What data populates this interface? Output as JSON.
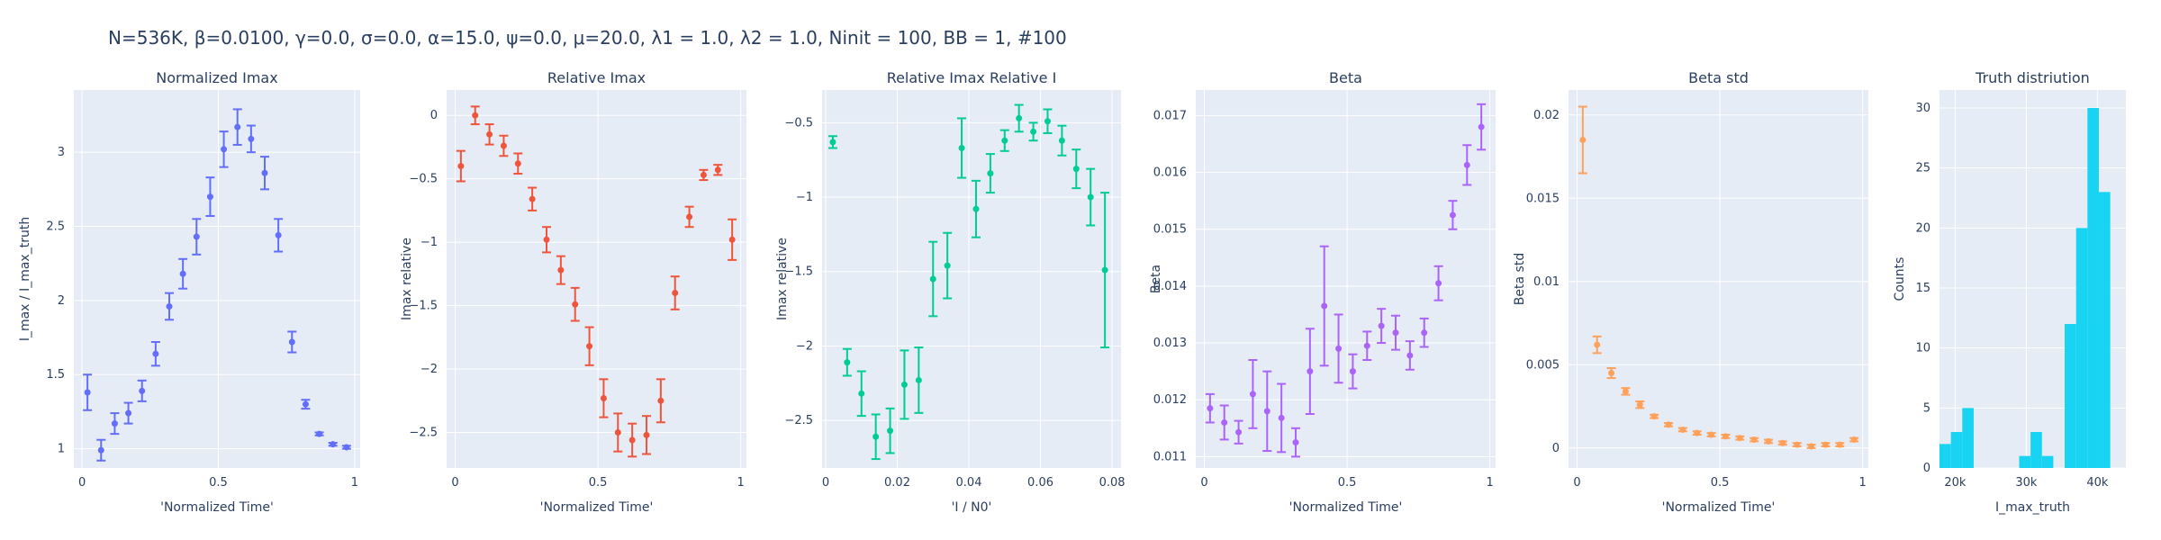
{
  "title": "N=536K, β=0.0100, γ=0.0, σ=0.0,  α=15.0, ψ=0.0, μ=20.0, λ1 = 1.0, λ2 = 1.0, Ninit = 100, BB = 1, #100",
  "colors": {
    "plot_bg": "#e5ecf6",
    "grid": "#ffffff",
    "text": "#2a3f5f"
  },
  "chart_data": [
    {
      "type": "scatter",
      "title": "Normalized Imax",
      "xlabel": "'Normalized Time'",
      "ylabel": "I_max / I_max_truth",
      "color": "#636efa",
      "xlim": [
        -0.03,
        1.02
      ],
      "ylim": [
        0.87,
        3.42
      ],
      "xticks": [
        0,
        0.5,
        1
      ],
      "xtick_labels": [
        "0",
        "0.5",
        "1"
      ],
      "yticks": [
        1,
        1.5,
        2,
        2.5,
        3
      ],
      "ytick_labels": [
        "1",
        "1.5",
        "2",
        "2.5",
        "3"
      ],
      "x": [
        0.02,
        0.07,
        0.12,
        0.17,
        0.22,
        0.27,
        0.32,
        0.37,
        0.42,
        0.47,
        0.52,
        0.57,
        0.62,
        0.67,
        0.72,
        0.77,
        0.82,
        0.87,
        0.92,
        0.97
      ],
      "y": [
        1.38,
        0.99,
        1.17,
        1.24,
        1.39,
        1.64,
        1.96,
        2.18,
        2.43,
        2.7,
        3.02,
        3.17,
        3.09,
        2.86,
        2.44,
        1.72,
        1.3,
        1.1,
        1.03,
        1.01
      ],
      "err": [
        0.12,
        0.07,
        0.07,
        0.07,
        0.07,
        0.08,
        0.09,
        0.1,
        0.12,
        0.13,
        0.12,
        0.12,
        0.09,
        0.11,
        0.11,
        0.07,
        0.03,
        0.01,
        0.01,
        0.01
      ]
    },
    {
      "type": "scatter",
      "title": "Relative Imax",
      "xlabel": "'Normalized Time'",
      "ylabel": "Imax relative",
      "color": "#ef553b",
      "xlim": [
        -0.03,
        1.02
      ],
      "ylim": [
        -2.78,
        0.2
      ],
      "xticks": [
        0,
        0.5,
        1
      ],
      "xtick_labels": [
        "0",
        "0.5",
        "1"
      ],
      "yticks": [
        0,
        -0.5,
        -1,
        -1.5,
        -2,
        -2.5
      ],
      "ytick_labels": [
        "0",
        "−0.5",
        "−1",
        "−1.5",
        "−2",
        "−2.5"
      ],
      "x": [
        0.02,
        0.07,
        0.12,
        0.17,
        0.22,
        0.27,
        0.32,
        0.37,
        0.42,
        0.47,
        0.52,
        0.57,
        0.62,
        0.67,
        0.72,
        0.77,
        0.82,
        0.87,
        0.92,
        0.97
      ],
      "y": [
        -0.4,
        0.0,
        -0.15,
        -0.24,
        -0.38,
        -0.66,
        -0.98,
        -1.22,
        -1.49,
        -1.82,
        -2.23,
        -2.5,
        -2.56,
        -2.52,
        -2.25,
        -1.4,
        -0.8,
        -0.47,
        -0.43,
        -0.98
      ],
      "err": [
        0.12,
        0.07,
        0.08,
        0.08,
        0.08,
        0.09,
        0.1,
        0.11,
        0.13,
        0.15,
        0.15,
        0.15,
        0.13,
        0.15,
        0.17,
        0.13,
        0.08,
        0.04,
        0.04,
        0.16
      ]
    },
    {
      "type": "scatter",
      "title": "Relative Imax Relative I",
      "xlabel": "'I / N0'",
      "ylabel": "Imax relative",
      "color": "#00cc96",
      "xlim": [
        -0.001,
        0.0825
      ],
      "ylim": [
        -2.82,
        -0.28
      ],
      "xticks": [
        0,
        0.02,
        0.04,
        0.06,
        0.08
      ],
      "xtick_labels": [
        "0",
        "0.02",
        "0.04",
        "0.06",
        "0.08"
      ],
      "yticks": [
        -0.5,
        -1,
        -1.5,
        -2,
        -2.5
      ],
      "ytick_labels": [
        "−0.5",
        "−1",
        "−1.5",
        "−2",
        "−2.5"
      ],
      "x": [
        0.002,
        0.006,
        0.01,
        0.014,
        0.018,
        0.022,
        0.026,
        0.03,
        0.034,
        0.038,
        0.042,
        0.046,
        0.05,
        0.054,
        0.058,
        0.062,
        0.066,
        0.07,
        0.074,
        0.078
      ],
      "y": [
        -0.63,
        -2.11,
        -2.32,
        -2.61,
        -2.57,
        -2.26,
        -2.23,
        -1.55,
        -1.46,
        -0.67,
        -1.08,
        -0.84,
        -0.62,
        -0.47,
        -0.56,
        -0.49,
        -0.62,
        -0.81,
        -1.0,
        -1.49
      ],
      "err": [
        0.04,
        0.09,
        0.15,
        0.15,
        0.15,
        0.23,
        0.22,
        0.25,
        0.22,
        0.2,
        0.19,
        0.13,
        0.07,
        0.09,
        0.06,
        0.08,
        0.1,
        0.13,
        0.19,
        0.52
      ]
    },
    {
      "type": "scatter",
      "title": "Beta",
      "xlabel": "'Normalized Time'",
      "ylabel": "Beta",
      "color": "#ab63fa",
      "xlim": [
        -0.03,
        1.02
      ],
      "ylim": [
        0.0108,
        0.01745
      ],
      "xticks": [
        0,
        0.5,
        1
      ],
      "xtick_labels": [
        "0",
        "0.5",
        "1"
      ],
      "yticks": [
        0.011,
        0.012,
        0.013,
        0.014,
        0.015,
        0.016,
        0.017
      ],
      "ytick_labels": [
        "0.011",
        "0.012",
        "0.013",
        "0.014",
        "0.015",
        "0.016",
        "0.017"
      ],
      "x": [
        0.02,
        0.07,
        0.12,
        0.17,
        0.22,
        0.27,
        0.32,
        0.37,
        0.42,
        0.47,
        0.52,
        0.57,
        0.62,
        0.67,
        0.72,
        0.77,
        0.82,
        0.87,
        0.92,
        0.97
      ],
      "y": [
        0.01185,
        0.0116,
        0.01143,
        0.0121,
        0.0118,
        0.01168,
        0.01125,
        0.0125,
        0.01365,
        0.0129,
        0.0125,
        0.01295,
        0.0133,
        0.01318,
        0.01278,
        0.01318,
        0.01405,
        0.01525,
        0.01613,
        0.0168
      ],
      "err": [
        0.00025,
        0.0003,
        0.0002,
        0.0006,
        0.0007,
        0.0006,
        0.00025,
        0.00075,
        0.00105,
        0.0006,
        0.0003,
        0.00025,
        0.0003,
        0.0003,
        0.00025,
        0.00025,
        0.0003,
        0.00025,
        0.00035,
        0.0004
      ]
    },
    {
      "type": "scatter",
      "title": "Beta std",
      "xlabel": "'Normalized Time'",
      "ylabel": "Beta std",
      "color": "#ffa15a",
      "xlim": [
        -0.03,
        1.02
      ],
      "ylim": [
        -0.0012,
        0.0215
      ],
      "xticks": [
        0,
        0.5,
        1
      ],
      "xtick_labels": [
        "0",
        "0.5",
        "1"
      ],
      "yticks": [
        0,
        0.005,
        0.01,
        0.015,
        0.02
      ],
      "ytick_labels": [
        "0",
        "0.005",
        "0.01",
        "0.015",
        "0.02"
      ],
      "x": [
        0.02,
        0.07,
        0.12,
        0.17,
        0.22,
        0.27,
        0.32,
        0.37,
        0.42,
        0.47,
        0.52,
        0.57,
        0.62,
        0.67,
        0.72,
        0.77,
        0.82,
        0.87,
        0.92,
        0.97
      ],
      "y": [
        0.0185,
        0.0062,
        0.0045,
        0.0034,
        0.0026,
        0.0019,
        0.0014,
        0.0011,
        0.0009,
        0.0008,
        0.0007,
        0.0006,
        0.0005,
        0.0004,
        0.0003,
        0.0002,
        0.0001,
        0.0002,
        0.0002,
        0.0005
      ],
      "err": [
        0.002,
        0.0005,
        0.0003,
        0.0002,
        0.0002,
        0.0001,
        0.0001,
        0.0001,
        0.0001,
        0.0001,
        0.0001,
        0.0001,
        0.0001,
        0.0001,
        0.0001,
        0.0001,
        0.0001,
        0.0001,
        0.0001,
        0.0001
      ]
    },
    {
      "type": "bar",
      "title": "Truth distriution",
      "xlabel": "I_max_truth",
      "ylabel": "Counts",
      "color": "#19d3f3",
      "xlim": [
        17800,
        44000
      ],
      "ylim": [
        0,
        31.5
      ],
      "xticks": [
        20000,
        30000,
        40000
      ],
      "xtick_labels": [
        "20k",
        "30k",
        "40k"
      ],
      "yticks": [
        0,
        5,
        10,
        15,
        20,
        25,
        30
      ],
      "ytick_labels": [
        "0",
        "5",
        "10",
        "15",
        "20",
        "25",
        "30"
      ],
      "bin_width": 1600,
      "bin_starts": [
        17800,
        19400,
        21000,
        22600,
        24200,
        25800,
        27400,
        29000,
        30600,
        32200,
        33800,
        35400,
        37000,
        38600,
        40200,
        41800
      ],
      "values": [
        2,
        3,
        5,
        0,
        0,
        0,
        0,
        1,
        3,
        1,
        0,
        12,
        20,
        30,
        23,
        0
      ]
    }
  ]
}
